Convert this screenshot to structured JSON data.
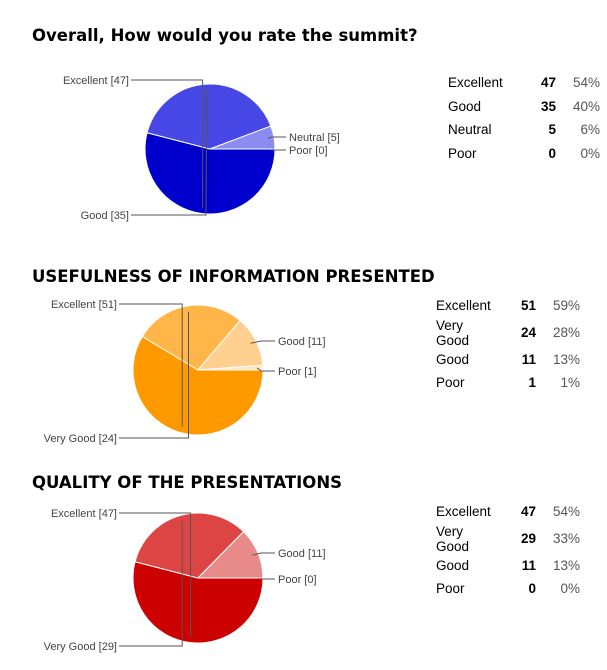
{
  "chart_data": [
    {
      "type": "pie",
      "title": "Overall, How would you rate the summit?",
      "slices": [
        {
          "label": "Excellent",
          "value": 47,
          "percent": "54%",
          "color": "#0000cc",
          "side": "left"
        },
        {
          "label": "Good",
          "value": 35,
          "percent": "40%",
          "color": "#4747e6",
          "side": "left"
        },
        {
          "label": "Neutral",
          "value": 5,
          "percent": "6%",
          "color": "#8c8cf0",
          "side": "right"
        },
        {
          "label": "Poor",
          "value": 0,
          "percent": "0%",
          "color": "#d6d6fa",
          "side": "right"
        }
      ]
    },
    {
      "type": "pie",
      "title": "USEFULNESS OF INFORMATION PRESENTED",
      "slices": [
        {
          "label": "Excellent",
          "value": 51,
          "percent": "59%",
          "color": "#ff9900",
          "side": "left"
        },
        {
          "label": "Very Good",
          "value": 24,
          "percent": "28%",
          "color": "#ffb547",
          "side": "left"
        },
        {
          "label": "Good",
          "value": 11,
          "percent": "13%",
          "color": "#ffd08f",
          "side": "right"
        },
        {
          "label": "Poor",
          "value": 1,
          "percent": "1%",
          "color": "#ffe6c2",
          "side": "right"
        }
      ]
    },
    {
      "type": "pie",
      "title": "QUALITY OF THE PRESENTATIONS",
      "slices": [
        {
          "label": "Excellent",
          "value": 47,
          "percent": "54%",
          "color": "#cc0000",
          "side": "left"
        },
        {
          "label": "Very Good",
          "value": 29,
          "percent": "33%",
          "color": "#dd4444",
          "side": "left"
        },
        {
          "label": "Good",
          "value": 11,
          "percent": "13%",
          "color": "#e88a8a",
          "side": "right"
        },
        {
          "label": "Poor",
          "value": 0,
          "percent": "0%",
          "color": "#f4c4c4",
          "side": "right"
        }
      ]
    }
  ]
}
